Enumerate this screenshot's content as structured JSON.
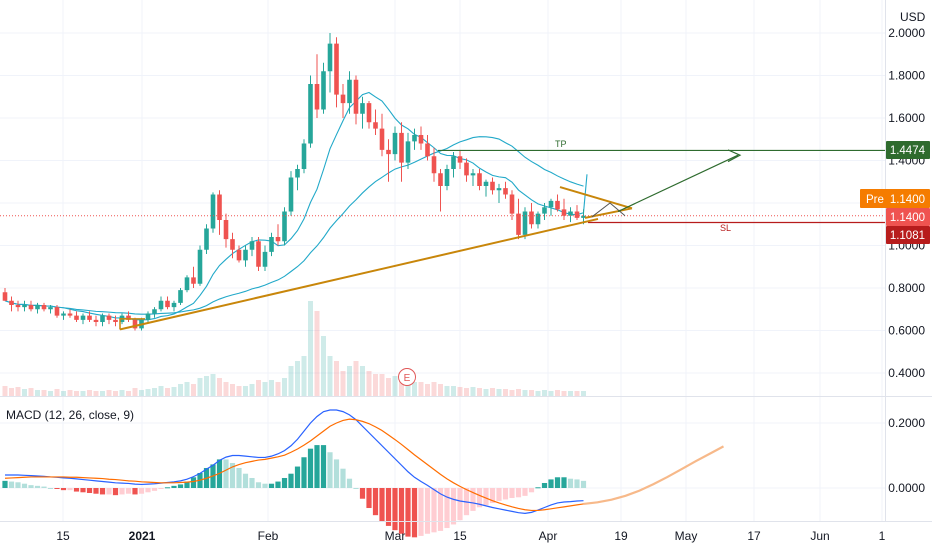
{
  "header": {
    "currency": "USD"
  },
  "price_axis": {
    "ticks": [
      "2.0000",
      "1.8000",
      "1.6000",
      "1.4000",
      "1.0000",
      "0.8000",
      "0.6000",
      "0.4000"
    ]
  },
  "macd_axis": {
    "ticks": [
      "0.2000",
      "0.0000"
    ]
  },
  "time_axis": {
    "labels": [
      "15",
      "2021",
      "Feb",
      "Mar",
      "15",
      "Apr",
      "19",
      "May",
      "17",
      "Jun",
      "1"
    ]
  },
  "macd": {
    "label": "MACD (12, 26, close, 9)"
  },
  "annotations": {
    "tp": "TP",
    "sl": "SL",
    "earnings": "E"
  },
  "badges": {
    "tp_value": "1.4474",
    "pre_label": "Pre",
    "pre_value": "1.1400",
    "last_value": "1.1400",
    "sl_value": "1.1081"
  },
  "colors": {
    "up": "#26a69a",
    "down": "#ef5350",
    "ma": "#22a9c9",
    "trendline": "#c8860a",
    "tp": "#2e6b2e",
    "sl": "#b71c1c",
    "pre": "#f57c00",
    "macd_line": "#2962ff",
    "signal_line": "#ff6d00",
    "projection": "#f7b98a"
  },
  "chart_data": [
    {
      "type": "candlestick",
      "title": "",
      "ylabel": "USD",
      "ylim": [
        0.3,
        2.05
      ],
      "x_labels": [
        "15",
        "2021",
        "Feb",
        "Mar",
        "15",
        "Apr",
        "19",
        "May",
        "17",
        "Jun",
        "1"
      ],
      "candles": [
        [
          0.78,
          0.8,
          0.74,
          0.74
        ],
        [
          0.74,
          0.76,
          0.69,
          0.72
        ],
        [
          0.72,
          0.74,
          0.69,
          0.71
        ],
        [
          0.71,
          0.74,
          0.69,
          0.72
        ],
        [
          0.72,
          0.74,
          0.69,
          0.7
        ],
        [
          0.7,
          0.73,
          0.68,
          0.72
        ],
        [
          0.72,
          0.73,
          0.69,
          0.7
        ],
        [
          0.7,
          0.72,
          0.68,
          0.71
        ],
        [
          0.71,
          0.72,
          0.66,
          0.67
        ],
        [
          0.67,
          0.69,
          0.65,
          0.68
        ],
        [
          0.68,
          0.7,
          0.66,
          0.67
        ],
        [
          0.67,
          0.69,
          0.64,
          0.65
        ],
        [
          0.65,
          0.68,
          0.63,
          0.67
        ],
        [
          0.67,
          0.69,
          0.64,
          0.65
        ],
        [
          0.65,
          0.67,
          0.62,
          0.64
        ],
        [
          0.64,
          0.68,
          0.62,
          0.67
        ],
        [
          0.67,
          0.68,
          0.63,
          0.65
        ],
        [
          0.65,
          0.67,
          0.62,
          0.64
        ],
        [
          0.64,
          0.68,
          0.63,
          0.67
        ],
        [
          0.67,
          0.69,
          0.64,
          0.65
        ],
        [
          0.65,
          0.66,
          0.6,
          0.61
        ],
        [
          0.61,
          0.66,
          0.6,
          0.65
        ],
        [
          0.65,
          0.69,
          0.64,
          0.68
        ],
        [
          0.68,
          0.71,
          0.66,
          0.7
        ],
        [
          0.7,
          0.76,
          0.69,
          0.74
        ],
        [
          0.74,
          0.76,
          0.7,
          0.71
        ],
        [
          0.71,
          0.74,
          0.69,
          0.73
        ],
        [
          0.73,
          0.8,
          0.72,
          0.79
        ],
        [
          0.79,
          0.86,
          0.78,
          0.85
        ],
        [
          0.85,
          0.9,
          0.8,
          0.82
        ],
        [
          0.82,
          1.0,
          0.81,
          0.98
        ],
        [
          0.98,
          1.1,
          0.96,
          1.08
        ],
        [
          1.08,
          1.25,
          1.06,
          1.24
        ],
        [
          1.24,
          1.26,
          1.05,
          1.12
        ],
        [
          1.12,
          1.15,
          0.99,
          1.03
        ],
        [
          1.03,
          1.06,
          0.94,
          0.98
        ],
        [
          0.98,
          1.0,
          0.92,
          0.93
        ],
        [
          0.93,
          1.0,
          0.9,
          0.98
        ],
        [
          0.98,
          1.04,
          0.95,
          1.02
        ],
        [
          1.02,
          1.04,
          0.88,
          0.9
        ],
        [
          0.9,
          1.0,
          0.88,
          0.97
        ],
        [
          0.97,
          1.06,
          0.95,
          1.04
        ],
        [
          1.04,
          1.1,
          1.0,
          1.02
        ],
        [
          1.02,
          1.18,
          1.0,
          1.16
        ],
        [
          1.16,
          1.35,
          1.14,
          1.32
        ],
        [
          1.32,
          1.38,
          1.26,
          1.36
        ],
        [
          1.36,
          1.5,
          1.34,
          1.48
        ],
        [
          1.48,
          1.8,
          1.46,
          1.76
        ],
        [
          1.76,
          1.9,
          1.6,
          1.64
        ],
        [
          1.64,
          1.86,
          1.62,
          1.82
        ],
        [
          1.82,
          2.0,
          1.72,
          1.95
        ],
        [
          1.95,
          1.98,
          1.65,
          1.71
        ],
        [
          1.71,
          1.76,
          1.6,
          1.67
        ],
        [
          1.67,
          1.82,
          1.62,
          1.78
        ],
        [
          1.78,
          1.8,
          1.57,
          1.62
        ],
        [
          1.62,
          1.7,
          1.55,
          1.67
        ],
        [
          1.67,
          1.68,
          1.55,
          1.58
        ],
        [
          1.58,
          1.64,
          1.52,
          1.55
        ],
        [
          1.55,
          1.62,
          1.42,
          1.45
        ],
        [
          1.45,
          1.5,
          1.3,
          1.43
        ],
        [
          1.43,
          1.56,
          1.4,
          1.53
        ],
        [
          1.53,
          1.58,
          1.3,
          1.39
        ],
        [
          1.39,
          1.53,
          1.36,
          1.49
        ],
        [
          1.49,
          1.55,
          1.45,
          1.52
        ],
        [
          1.52,
          1.56,
          1.45,
          1.48
        ],
        [
          1.48,
          1.52,
          1.4,
          1.42
        ],
        [
          1.42,
          1.46,
          1.3,
          1.34
        ],
        [
          1.34,
          1.36,
          1.16,
          1.28
        ],
        [
          1.28,
          1.38,
          1.26,
          1.36
        ],
        [
          1.36,
          1.44,
          1.32,
          1.42
        ],
        [
          1.42,
          1.45,
          1.36,
          1.39
        ],
        [
          1.39,
          1.41,
          1.3,
          1.33
        ],
        [
          1.33,
          1.36,
          1.28,
          1.34
        ],
        [
          1.34,
          1.36,
          1.26,
          1.28
        ],
        [
          1.28,
          1.31,
          1.23,
          1.3
        ],
        [
          1.3,
          1.32,
          1.24,
          1.26
        ],
        [
          1.26,
          1.29,
          1.2,
          1.27
        ],
        [
          1.27,
          1.3,
          1.22,
          1.24
        ],
        [
          1.24,
          1.26,
          1.12,
          1.15
        ],
        [
          1.15,
          1.22,
          1.03,
          1.05
        ],
        [
          1.05,
          1.18,
          1.03,
          1.16
        ],
        [
          1.16,
          1.2,
          1.08,
          1.1
        ],
        [
          1.1,
          1.16,
          1.08,
          1.15
        ],
        [
          1.15,
          1.2,
          1.12,
          1.18
        ],
        [
          1.18,
          1.22,
          1.14,
          1.21
        ],
        [
          1.21,
          1.24,
          1.16,
          1.17
        ],
        [
          1.17,
          1.22,
          1.12,
          1.14
        ],
        [
          1.14,
          1.18,
          1.11,
          1.16
        ],
        [
          1.16,
          1.19,
          1.12,
          1.13
        ],
        [
          1.13,
          1.17,
          1.1,
          1.14
        ]
      ],
      "volume": [
        0.1,
        0.08,
        0.09,
        0.07,
        0.08,
        0.06,
        0.06,
        0.05,
        0.07,
        0.05,
        0.06,
        0.05,
        0.05,
        0.06,
        0.05,
        0.05,
        0.06,
        0.05,
        0.06,
        0.05,
        0.08,
        0.06,
        0.07,
        0.08,
        0.1,
        0.08,
        0.09,
        0.12,
        0.14,
        0.12,
        0.18,
        0.2,
        0.22,
        0.18,
        0.14,
        0.12,
        0.1,
        0.1,
        0.12,
        0.16,
        0.14,
        0.16,
        0.14,
        0.18,
        0.3,
        0.35,
        0.4,
        0.95,
        0.85,
        0.6,
        0.4,
        0.35,
        0.25,
        0.3,
        0.35,
        0.3,
        0.25,
        0.22,
        0.22,
        0.18,
        0.2,
        0.16,
        0.18,
        0.14,
        0.14,
        0.12,
        0.14,
        0.12,
        0.1,
        0.1,
        0.09,
        0.08,
        0.09,
        0.08,
        0.07,
        0.08,
        0.07,
        0.07,
        0.06,
        0.07,
        0.06,
        0.06,
        0.05,
        0.06,
        0.05,
        0.06,
        0.05,
        0.05,
        0.05,
        0.05
      ],
      "overlays": {
        "tp_level": 1.4474,
        "sl_level": 1.1081,
        "last_price": 1.14
      }
    },
    {
      "type": "macd",
      "title": "MACD (12, 26, close, 9)",
      "ylim": [
        -0.1,
        0.26
      ],
      "macd": [
        0.04,
        0.04,
        0.04,
        0.039,
        0.038,
        0.037,
        0.036,
        0.034,
        0.033,
        0.031,
        0.03,
        0.028,
        0.026,
        0.024,
        0.022,
        0.02,
        0.018,
        0.016,
        0.015,
        0.014,
        0.012,
        0.011,
        0.012,
        0.013,
        0.015,
        0.017,
        0.019,
        0.022,
        0.027,
        0.035,
        0.045,
        0.058,
        0.07,
        0.085,
        0.095,
        0.1,
        0.1,
        0.098,
        0.096,
        0.094,
        0.094,
        0.098,
        0.105,
        0.115,
        0.13,
        0.15,
        0.175,
        0.2,
        0.22,
        0.235,
        0.24,
        0.24,
        0.235,
        0.225,
        0.21,
        0.19,
        0.17,
        0.15,
        0.13,
        0.11,
        0.09,
        0.07,
        0.05,
        0.033,
        0.02,
        0.008,
        -0.005,
        -0.018,
        -0.028,
        -0.035,
        -0.04,
        -0.043,
        -0.046,
        -0.05,
        -0.055,
        -0.06,
        -0.064,
        -0.068,
        -0.072,
        -0.076,
        -0.078,
        -0.075,
        -0.068,
        -0.06,
        -0.052,
        -0.046,
        -0.043,
        -0.042,
        -0.04,
        -0.039
      ],
      "signal": [
        0.03,
        0.031,
        0.032,
        0.033,
        0.034,
        0.034,
        0.034,
        0.034,
        0.034,
        0.034,
        0.033,
        0.033,
        0.032,
        0.031,
        0.03,
        0.029,
        0.027,
        0.026,
        0.024,
        0.022,
        0.021,
        0.019,
        0.018,
        0.017,
        0.016,
        0.016,
        0.016,
        0.017,
        0.018,
        0.02,
        0.024,
        0.03,
        0.037,
        0.045,
        0.055,
        0.065,
        0.072,
        0.078,
        0.082,
        0.086,
        0.088,
        0.092,
        0.096,
        0.101,
        0.11,
        0.12,
        0.132,
        0.145,
        0.16,
        0.175,
        0.19,
        0.2,
        0.208,
        0.212,
        0.21,
        0.205,
        0.198,
        0.188,
        0.177,
        0.163,
        0.149,
        0.134,
        0.118,
        0.102,
        0.087,
        0.072,
        0.057,
        0.042,
        0.028,
        0.016,
        0.005,
        -0.005,
        -0.014,
        -0.023,
        -0.031,
        -0.039,
        -0.046,
        -0.052,
        -0.058,
        -0.063,
        -0.067,
        -0.069,
        -0.069,
        -0.067,
        -0.064,
        -0.061,
        -0.058,
        -0.055,
        -0.052,
        -0.049
      ],
      "projection": [
        -0.049,
        -0.044,
        -0.036,
        -0.024,
        -0.008,
        0.012,
        0.034,
        0.058,
        0.082,
        0.105,
        0.128
      ]
    }
  ]
}
